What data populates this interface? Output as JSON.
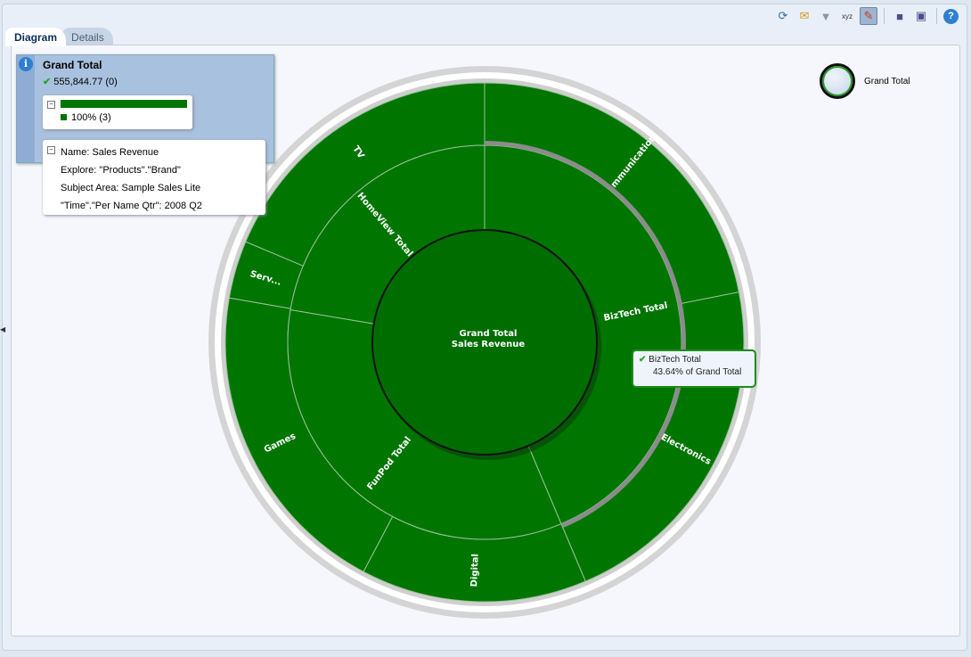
{
  "toolbar": {
    "icons": [
      "refresh-icon",
      "send-icon",
      "filter-icon",
      "xyz-icon",
      "edit-icon",
      "save-icon",
      "save-as-icon",
      "help-icon"
    ],
    "active": "edit-icon"
  },
  "tabs": [
    {
      "label": "Diagram",
      "active": true
    },
    {
      "label": "Details",
      "active": false
    }
  ],
  "info": {
    "title": "Grand Total",
    "value": "555,844.77 (0)",
    "bar_percent": 100,
    "bar_label": "100% (3)",
    "details": [
      "Name: Sales Revenue",
      "Explore: \"Products\".\"Brand\"",
      "Subject Area: Sample Sales Lite",
      "\"Time\".\"Per Name Qtr\": 2008 Q2"
    ]
  },
  "legend": {
    "label": "Grand Total"
  },
  "tooltip": {
    "title": "BizTech  Total",
    "text": "43.64% of Grand Total"
  },
  "colors": {
    "segment": "#007500",
    "inner": "#006d00",
    "accent": "#1f8a1f"
  },
  "chart_data": {
    "type": "sunburst",
    "center": {
      "line1": "Grand Total",
      "line2": "Sales Revenue"
    },
    "level1": [
      {
        "label": "BizTech  Total",
        "share": 43.64
      },
      {
        "label": "FunPod  Total",
        "share": 34.0
      },
      {
        "label": "HomeView  Total",
        "share": 22.36
      }
    ],
    "level2": [
      {
        "label": "Communication",
        "share": 21.9
      },
      {
        "label": "Electronics",
        "share": 21.74
      },
      {
        "label": "Digital",
        "share": 14.1
      },
      {
        "label": "Games",
        "share": 20.0
      },
      {
        "label": "Serv...",
        "share": 3.6
      },
      {
        "label": "TV",
        "share": 18.66
      }
    ]
  }
}
